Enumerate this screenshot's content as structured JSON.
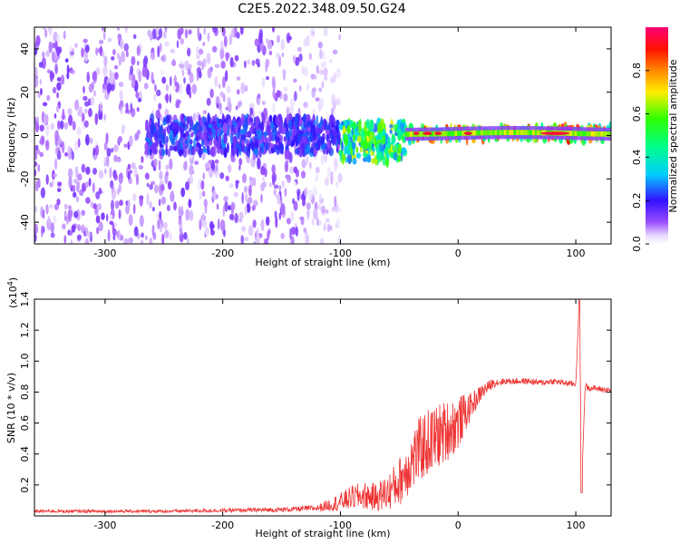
{
  "title": "C2E5.2022.348.09.50.G24",
  "colors": {
    "snr_line": "#ee3333",
    "spectrogram_low": "#7a2cf5",
    "spectrogram_mid": "#33dd66",
    "spectrogram_high": "#ee1144",
    "frame": "#000000"
  },
  "chart_data": [
    {
      "type": "heatmap",
      "title": "C2E5.2022.348.09.50.G24",
      "xlabel": "Height of straight line (km)",
      "ylabel": "Frequency (Hz)",
      "xlim": [
        -360,
        130
      ],
      "ylim": [
        -50,
        50
      ],
      "x_ticks": [
        -300,
        -200,
        -100,
        0,
        100
      ],
      "x_tick_labels": [
        "-300",
        "-200",
        "-100",
        "0",
        "100"
      ],
      "y_ticks": [
        -40,
        -20,
        0,
        20,
        40
      ],
      "y_tick_labels": [
        "-40",
        "-20",
        "0",
        "20",
        "40"
      ],
      "colorbar": {
        "label": "Normalized spectral amplitude",
        "range": [
          0.0,
          1.0
        ],
        "ticks": [
          0.0,
          0.2,
          0.4,
          0.6,
          0.8
        ],
        "tick_labels": [
          "0.0",
          "0.2",
          "0.4",
          "0.6",
          "0.8"
        ]
      },
      "regions": [
        {
          "name": "broadband noise",
          "x_range": [
            -360,
            -130
          ],
          "freq_range": [
            -50,
            50
          ],
          "amplitude": 0.1
        },
        {
          "name": "noise fade",
          "x_range": [
            -130,
            -100
          ],
          "freq_range": [
            -50,
            50
          ],
          "amplitude": 0.05
        },
        {
          "name": "signal emerging",
          "x_range": [
            -265,
            -100
          ],
          "freq_range": [
            -8,
            8
          ],
          "amplitude": 0.2
        },
        {
          "name": "signal band",
          "x_range": [
            -100,
            -45
          ],
          "freq_range": [
            -12,
            6
          ],
          "amplitude": 0.5
        },
        {
          "name": "signal carrier",
          "x_range": [
            -45,
            130
          ],
          "freq_range": [
            -2,
            4
          ],
          "amplitude": 0.65
        },
        {
          "name": "peak carrier",
          "x_range": [
            70,
            95
          ],
          "freq_range": [
            1,
            3
          ],
          "amplitude": 0.95
        }
      ]
    },
    {
      "type": "line",
      "xlabel": "Height of straight line (km)",
      "ylabel": "SNR (10 * v/v)",
      "y_scale_label": "(x10",
      "y_scale_exponent": "4",
      "y_scale_suffix": ")",
      "xlim": [
        -360,
        130
      ],
      "ylim": [
        0,
        1.4
      ],
      "x_ticks": [
        -300,
        -200,
        -100,
        0,
        100
      ],
      "x_tick_labels": [
        "-300",
        "-200",
        "-100",
        "0",
        "100"
      ],
      "y_ticks": [
        0.2,
        0.4,
        0.6,
        0.8,
        1.0,
        1.2,
        1.4
      ],
      "y_tick_labels": [
        "0.2",
        "0.4",
        "0.6",
        "0.8",
        "1.0",
        "1.2",
        "1.4"
      ],
      "series": [
        {
          "x": [
            -360,
            -300,
            -250,
            -200,
            -150,
            -120,
            -100,
            -90,
            -80,
            -70,
            -60,
            -50,
            -40,
            -30,
            -20,
            -10,
            0,
            10,
            20,
            30,
            40,
            50,
            60,
            70,
            80,
            90,
            100,
            103,
            105,
            108,
            110,
            120,
            130
          ],
          "y": [
            0.03,
            0.03,
            0.03,
            0.035,
            0.04,
            0.05,
            0.09,
            0.12,
            0.13,
            0.12,
            0.15,
            0.22,
            0.35,
            0.45,
            0.5,
            0.55,
            0.6,
            0.7,
            0.8,
            0.86,
            0.87,
            0.87,
            0.87,
            0.86,
            0.87,
            0.86,
            0.85,
            1.4,
            0.2,
            0.85,
            0.83,
            0.82,
            0.81
          ],
          "noise": [
            0.01,
            0.01,
            0.01,
            0.012,
            0.015,
            0.02,
            0.06,
            0.08,
            0.09,
            0.09,
            0.12,
            0.16,
            0.2,
            0.22,
            0.22,
            0.2,
            0.18,
            0.09,
            0.05,
            0.03,
            0.02,
            0.02,
            0.02,
            0.02,
            0.02,
            0.02,
            0.02,
            0.0,
            0.0,
            0.02,
            0.02,
            0.02,
            0.02
          ]
        }
      ]
    }
  ]
}
